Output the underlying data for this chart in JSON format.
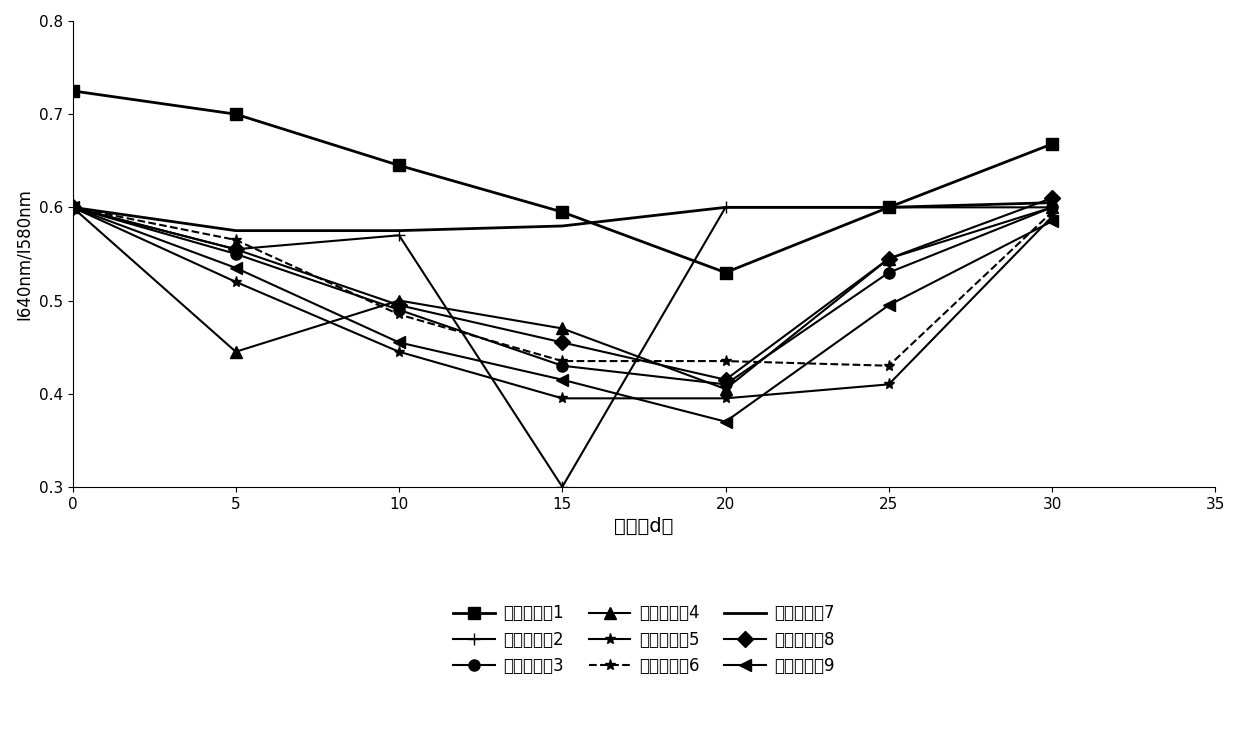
{
  "x": [
    0,
    5,
    10,
    15,
    20,
    25,
    30
  ],
  "series": [
    {
      "label": "对比实施例1",
      "values": [
        0.725,
        0.7,
        0.645,
        0.595,
        0.53,
        0.6,
        0.668
      ],
      "marker": "s",
      "linestyle": "-",
      "linewidth": 2.0
    },
    {
      "label": "对比实施例2",
      "values": [
        0.6,
        0.555,
        0.57,
        0.3,
        0.6,
        0.6,
        0.6
      ],
      "marker": "+",
      "linestyle": "-",
      "linewidth": 1.5
    },
    {
      "label": "对比实施例3",
      "values": [
        0.6,
        0.55,
        0.49,
        0.43,
        0.41,
        0.53,
        0.6
      ],
      "marker": "o",
      "linestyle": "-",
      "linewidth": 1.5
    },
    {
      "label": "对比实施例4",
      "values": [
        0.6,
        0.445,
        0.5,
        0.47,
        0.405,
        0.545,
        0.6
      ],
      "marker": "^",
      "linestyle": "-",
      "linewidth": 1.5
    },
    {
      "label": "对比实施例5",
      "values": [
        0.6,
        0.52,
        0.445,
        0.395,
        0.395,
        0.41,
        0.59
      ],
      "marker": "*",
      "linestyle": "-",
      "linewidth": 1.5
    },
    {
      "label": "对比实施例6",
      "values": [
        0.6,
        0.565,
        0.485,
        0.435,
        0.435,
        0.43,
        0.595
      ],
      "marker": "*",
      "linestyle": "--",
      "linewidth": 1.5
    },
    {
      "label": "对比实施例7",
      "values": [
        0.6,
        0.575,
        0.575,
        0.58,
        0.6,
        0.6,
        0.605
      ],
      "marker": "None",
      "linestyle": "-",
      "linewidth": 2.0
    },
    {
      "label": "对比实施例8",
      "values": [
        0.6,
        0.555,
        0.495,
        0.455,
        0.415,
        0.545,
        0.61
      ],
      "marker": "D",
      "linestyle": "-",
      "linewidth": 1.5
    },
    {
      "label": "对比实施例9",
      "values": [
        0.6,
        0.535,
        0.455,
        0.415,
        0.37,
        0.495,
        0.585
      ],
      "marker": "<",
      "linestyle": "-",
      "linewidth": 1.5
    }
  ],
  "xlabel": "时间（d）",
  "ylabel": "I640nm/I580nm",
  "xlim": [
    0,
    35
  ],
  "ylim": [
    0.3,
    0.8
  ],
  "xticks": [
    0,
    5,
    10,
    15,
    20,
    25,
    30,
    35
  ],
  "yticks": [
    0.3,
    0.4,
    0.5,
    0.6,
    0.7,
    0.8
  ],
  "color": "#000000",
  "background_color": "#ffffff"
}
